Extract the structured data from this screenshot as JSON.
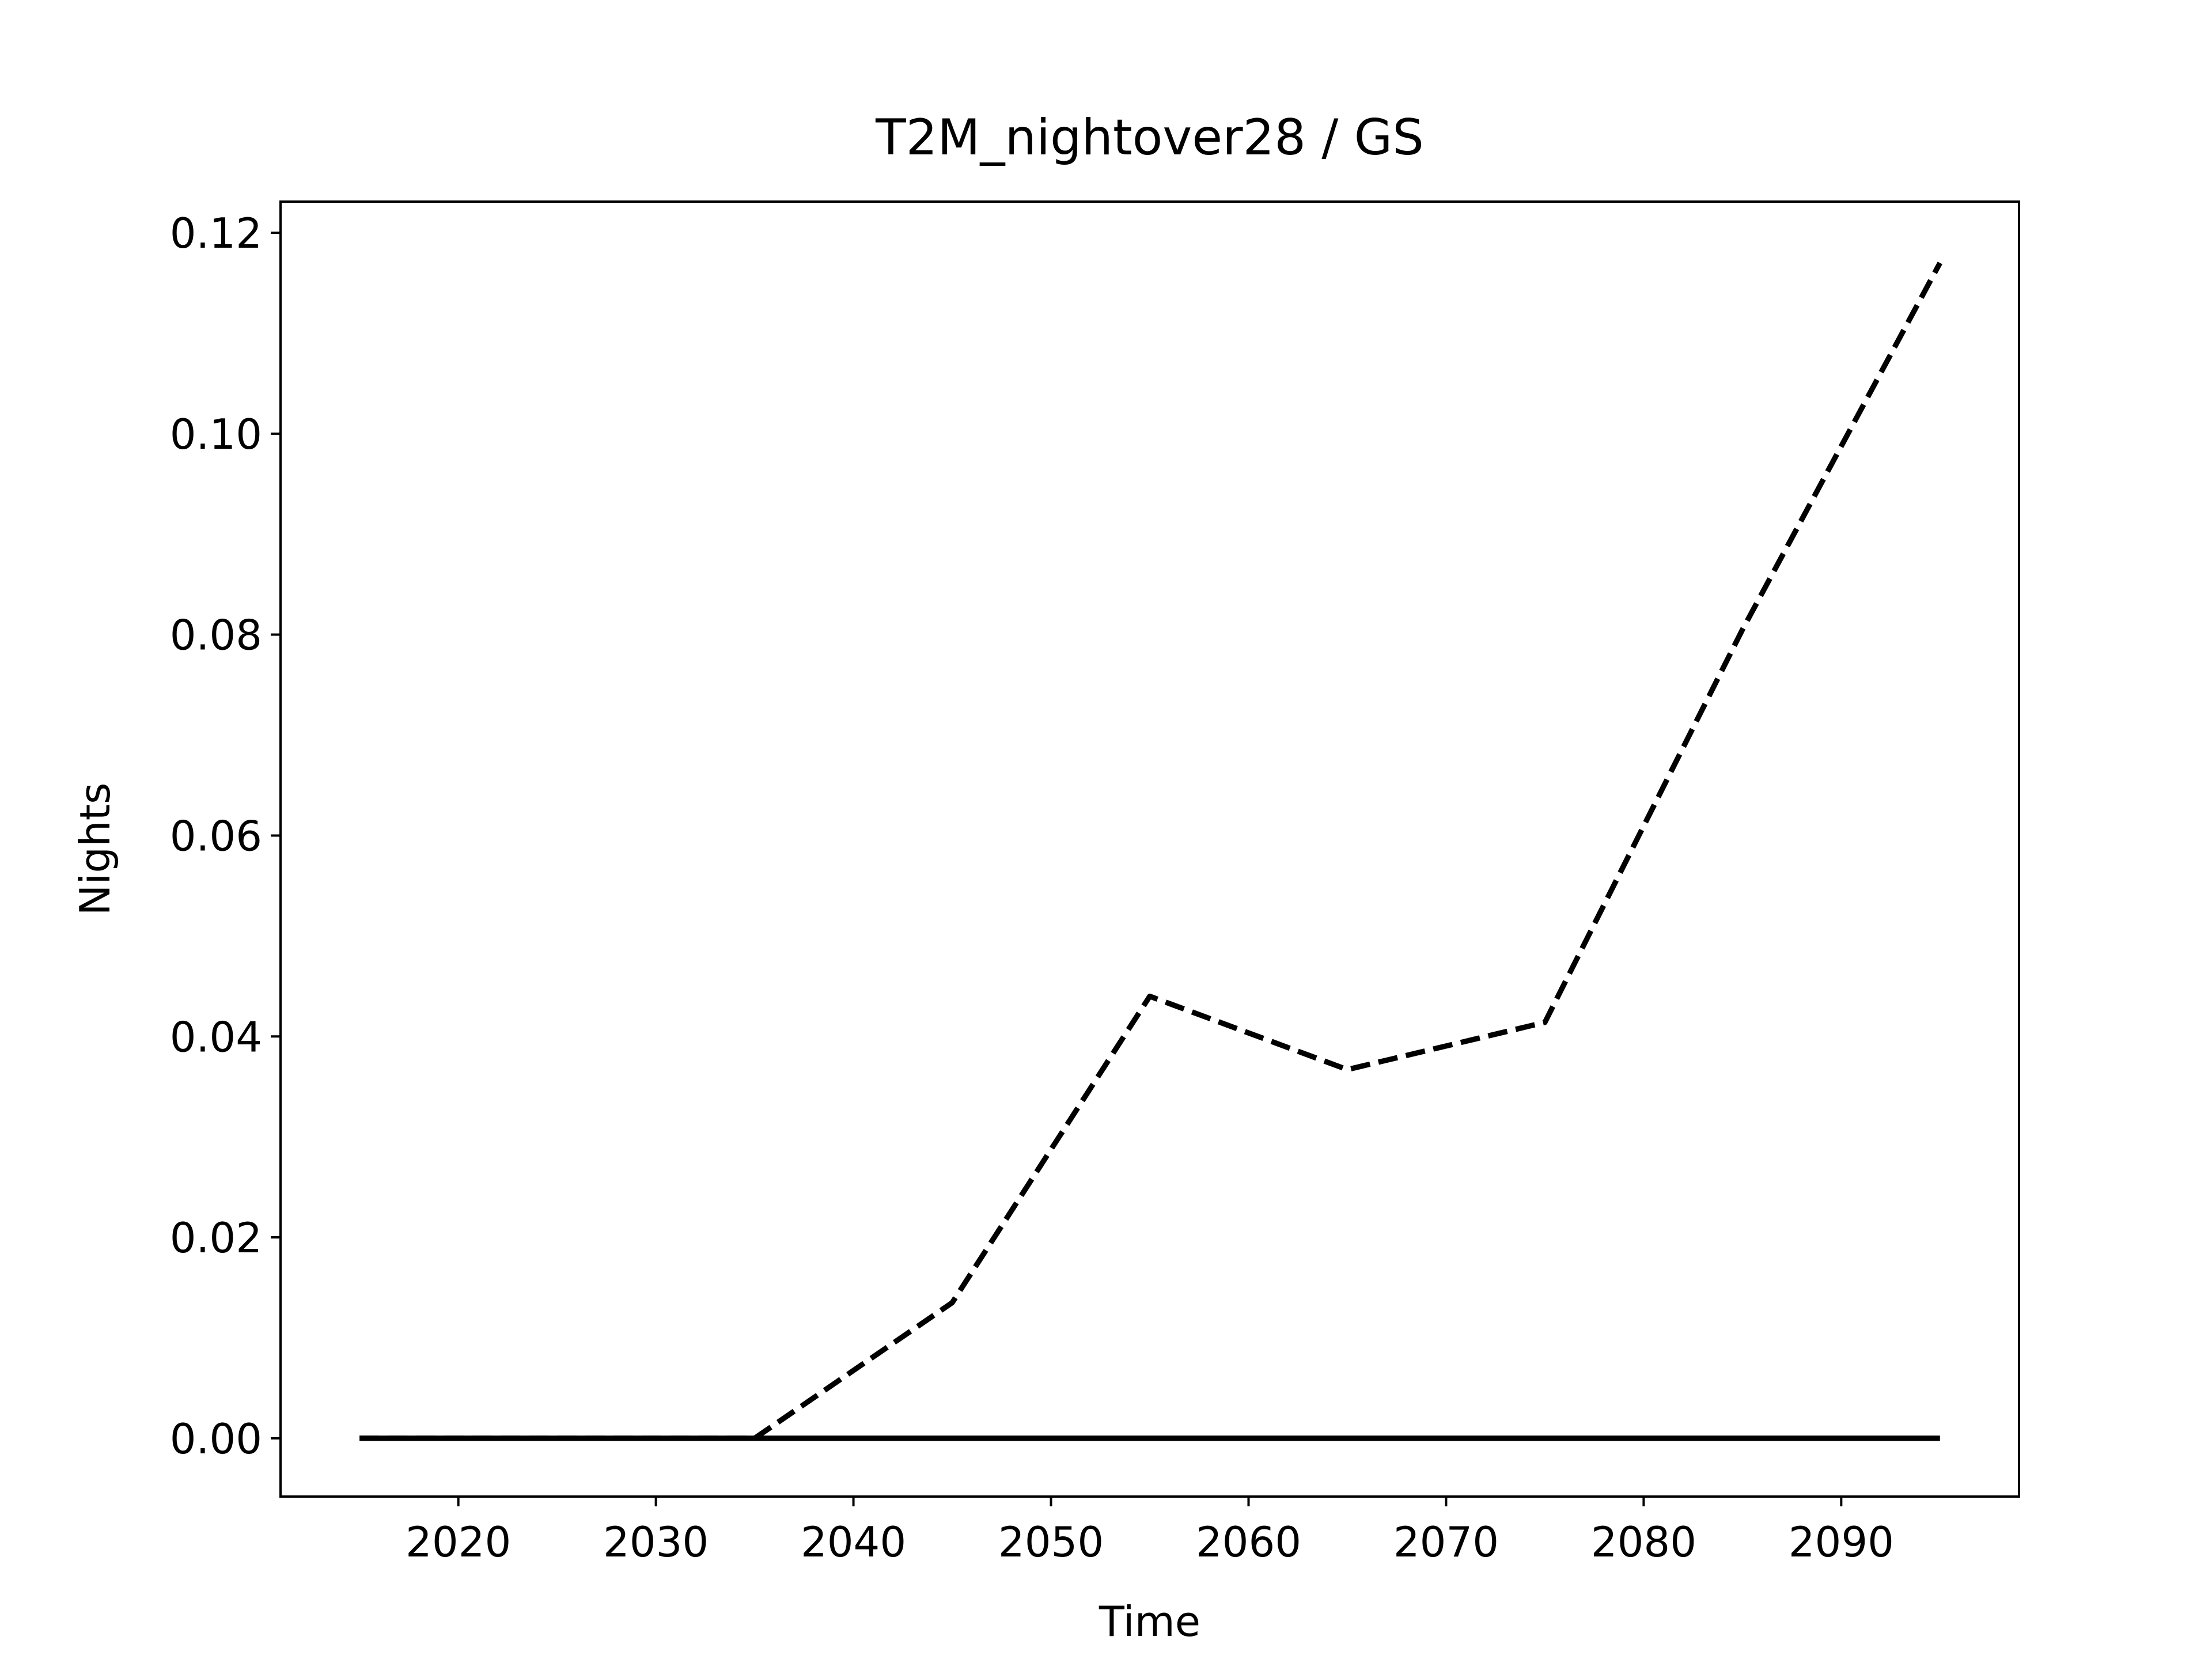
{
  "chart_data": {
    "type": "line",
    "title": "T2M_nightover28 / GS",
    "xlabel": "Time",
    "ylabel": "Nights",
    "x": [
      2015,
      2025,
      2035,
      2045,
      2055,
      2065,
      2075,
      2085,
      2095
    ],
    "series": [
      {
        "color": "#000000",
        "linestyle": "dashed",
        "values": [
          0,
          0,
          0,
          0.0135,
          0.044,
          0.0367,
          0.0414,
          0.0805,
          0.117
        ]
      },
      {
        "color": "#000000",
        "linestyle": "solid",
        "values": [
          0,
          0,
          0,
          0,
          0,
          0,
          0,
          0,
          0
        ]
      }
    ],
    "xlim": [
      2011,
      2099
    ],
    "xticks": [
      2020,
      2030,
      2040,
      2050,
      2060,
      2070,
      2080,
      2090
    ],
    "ylim": [
      -0.0058,
      0.1231
    ],
    "yticks": [
      {
        "value": 0,
        "label": "0.00"
      },
      {
        "value": 0.02,
        "label": "0.02"
      },
      {
        "value": 0.04,
        "label": "0.04"
      },
      {
        "value": 0.06,
        "label": "0.06"
      },
      {
        "value": 0.08,
        "label": "0.08"
      },
      {
        "value": 0.1,
        "label": "0.10"
      },
      {
        "value": 0.12,
        "label": "0.12"
      }
    ],
    "grid": false
  }
}
